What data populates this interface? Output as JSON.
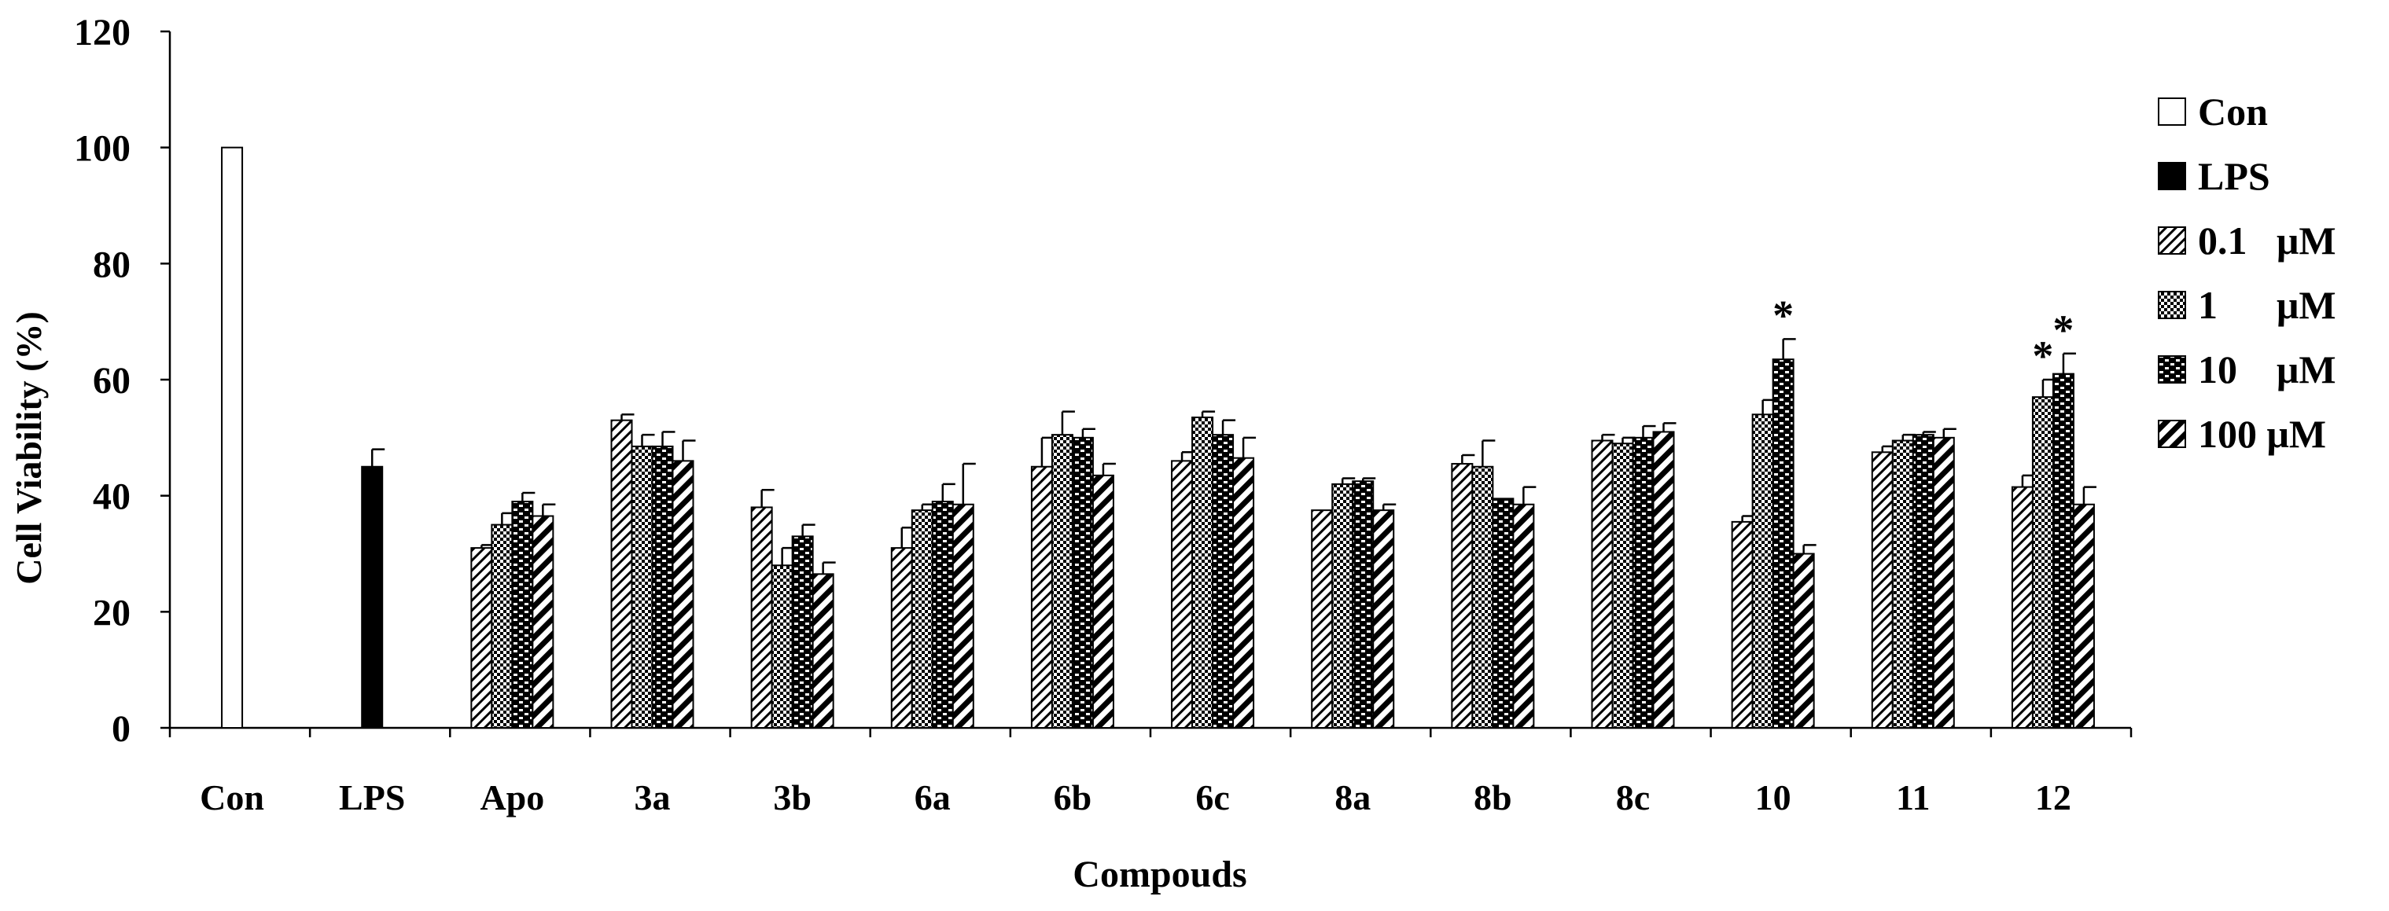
{
  "chart_data": {
    "type": "bar",
    "title": "",
    "xlabel": "Compouds",
    "ylabel": "Cell Viability (%)",
    "ylim": [
      0,
      120
    ],
    "yticks": [
      0,
      20,
      40,
      60,
      80,
      100,
      120
    ],
    "grid": false,
    "legend_position": "right",
    "categories": [
      "Con",
      "LPS",
      "Apo",
      "3a",
      "3b",
      "6a",
      "6b",
      "6c",
      "8a",
      "8b",
      "8c",
      "10",
      "11",
      "12"
    ],
    "series": [
      {
        "name": "Con",
        "pattern": "white",
        "values": [
          100,
          null,
          null,
          null,
          null,
          null,
          null,
          null,
          null,
          null,
          null,
          null,
          null,
          null
        ],
        "errors": [
          0,
          null,
          null,
          null,
          null,
          null,
          null,
          null,
          null,
          null,
          null,
          null,
          null,
          null
        ]
      },
      {
        "name": "LPS",
        "pattern": "black",
        "values": [
          null,
          45,
          null,
          null,
          null,
          null,
          null,
          null,
          null,
          null,
          null,
          null,
          null,
          null
        ],
        "errors": [
          null,
          3,
          null,
          null,
          null,
          null,
          null,
          null,
          null,
          null,
          null,
          null,
          null,
          null
        ]
      },
      {
        "name": "0.1   μM",
        "pattern": "light-diagonal",
        "values": [
          null,
          null,
          31,
          53,
          38,
          31,
          45,
          46,
          37.5,
          45.5,
          49.5,
          35.5,
          47.5,
          41.5
        ],
        "errors": [
          null,
          null,
          0.5,
          1,
          3,
          3.5,
          5,
          1.5,
          0,
          1.5,
          1,
          1,
          1,
          2
        ]
      },
      {
        "name": "1      μM",
        "pattern": "checker",
        "values": [
          null,
          null,
          35,
          48.5,
          28,
          37.5,
          50.5,
          53.5,
          42,
          45,
          49,
          54,
          49.5,
          57
        ],
        "errors": [
          null,
          null,
          2,
          2,
          3,
          1,
          4,
          1,
          1,
          4.5,
          1,
          2.5,
          1,
          3
        ]
      },
      {
        "name": "10    μM",
        "pattern": "brick",
        "values": [
          null,
          null,
          39,
          48.5,
          33,
          39,
          50,
          50.5,
          42.5,
          39.5,
          50,
          63.5,
          50.5,
          61
        ],
        "errors": [
          null,
          null,
          1.5,
          2.5,
          2,
          3,
          1.5,
          2.5,
          0.5,
          0,
          2,
          3.5,
          0.5,
          3.5
        ]
      },
      {
        "name": "100 μM",
        "pattern": "heavy-diagonal",
        "values": [
          null,
          null,
          36.5,
          46,
          26.5,
          38.5,
          43.5,
          46.5,
          37.5,
          38.5,
          51,
          30,
          50,
          38.5
        ],
        "errors": [
          null,
          null,
          2,
          3.5,
          2,
          7,
          2,
          3.5,
          1,
          3,
          1.5,
          1.5,
          1.5,
          3
        ]
      }
    ],
    "annotations": [
      {
        "text": "*",
        "category": "10",
        "series": "10    μM"
      },
      {
        "text": "*",
        "category": "12",
        "series": "1      μM"
      },
      {
        "text": "*",
        "category": "12",
        "series": "10    μM"
      }
    ]
  }
}
